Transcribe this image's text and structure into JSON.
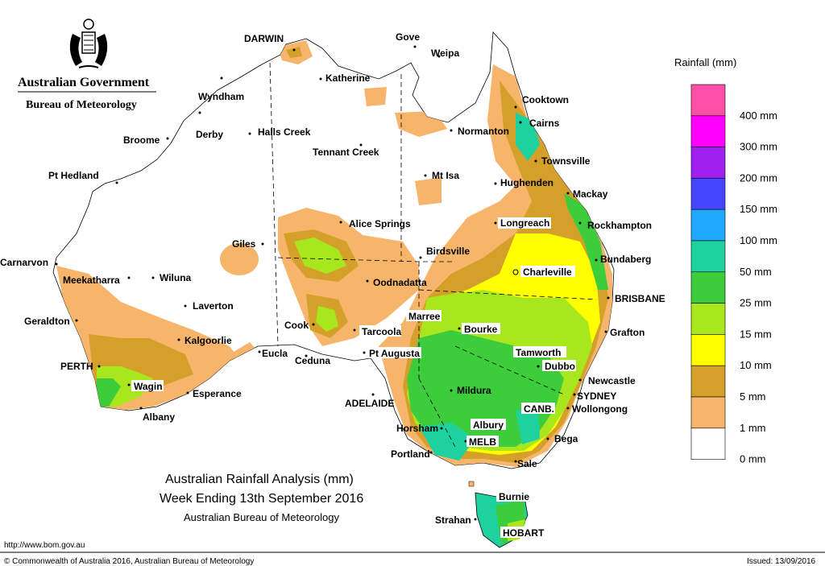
{
  "header": {
    "gov_line1": "Australian Government",
    "gov_line2": "Bureau of Meteorology"
  },
  "title": {
    "line1": "Australian Rainfall Analysis (mm)",
    "line2": "Week Ending 13th September 2016",
    "line3": "Australian Bureau of Meteorology"
  },
  "legend": {
    "title": "Rainfall (mm)",
    "bins": [
      {
        "label": "400 mm",
        "color": "#ff4fa8"
      },
      {
        "label": "300 mm",
        "color": "#ff00ff"
      },
      {
        "label": "200 mm",
        "color": "#a020f0"
      },
      {
        "label": "150 mm",
        "color": "#4646ff"
      },
      {
        "label": "100 mm",
        "color": "#1ea8ff"
      },
      {
        "label": "50 mm",
        "color": "#1ed2a0"
      },
      {
        "label": "25 mm",
        "color": "#3ccc3c"
      },
      {
        "label": "15 mm",
        "color": "#a8e61e"
      },
      {
        "label": "10 mm",
        "color": "#ffff00"
      },
      {
        "label": "5 mm",
        "color": "#d4a02a"
      },
      {
        "label": "1 mm",
        "color": "#f6b56a"
      },
      {
        "label": "0 mm",
        "color": "#ffffff"
      }
    ]
  },
  "places": {
    "darwin": "DARWIN",
    "gove": "Gove",
    "weipa": "Weipa",
    "katherine": "Katherine",
    "wyndham": "Wyndham",
    "cooktown": "Cooktown",
    "cairns": "Cairns",
    "normanton": "Normanton",
    "broome": "Broome",
    "derby": "Derby",
    "halls_creek": "Halls Creek",
    "tennant_creek": "Tennant Creek",
    "townsville": "Townsville",
    "mt_isa": "Mt Isa",
    "pt_hedland": "Pt Hedland",
    "hughenden": "Hughenden",
    "mackay": "Mackay",
    "rockhampton": "Rockhampton",
    "alice_springs": "Alice Springs",
    "longreach": "Longreach",
    "giles": "Giles",
    "birdsville": "Birdsville",
    "carnarvon": "Carnarvon",
    "meekatharra": "Meekatharra",
    "wiluna": "Wiluna",
    "bundaberg": "Bundaberg",
    "oodnadatta": "Oodnadatta",
    "charleville": "Charleville",
    "brisbane": "BRISBANE",
    "laverton": "Laverton",
    "geraldton": "Geraldton",
    "cook": "Cook",
    "marree": "Marree",
    "bourke": "Bourke",
    "grafton": "Grafton",
    "kalgoorlie": "Kalgoorlie",
    "tarcoola": "Tarcoola",
    "pt_augusta": "Pt Augusta",
    "tamworth": "Tamworth",
    "eucla": "Eucla",
    "ceduna": "Ceduna",
    "dubbo": "Dubbo",
    "perth": "PERTH",
    "newcastle": "Newcastle",
    "wagin": "Wagin",
    "esperance": "Esperance",
    "mildura": "Mildura",
    "sydney": "SYDNEY",
    "adelaide": "ADELAIDE",
    "wollongong": "Wollongong",
    "albany": "Albany",
    "canb": "CANB.",
    "albury": "Albury",
    "horsham": "Horsham",
    "bega": "Bega",
    "melb": "MELB",
    "portland": "Portland",
    "sale": "Sale",
    "burnie": "Burnie",
    "strahan": "Strahan",
    "hobart": "HOBART"
  },
  "footer": {
    "url": "http://www.bom.gov.au",
    "copyright": "© Commonwealth of Australia 2016, Australian Bureau of Meteorology",
    "issued": "Issued: 13/09/2016"
  }
}
